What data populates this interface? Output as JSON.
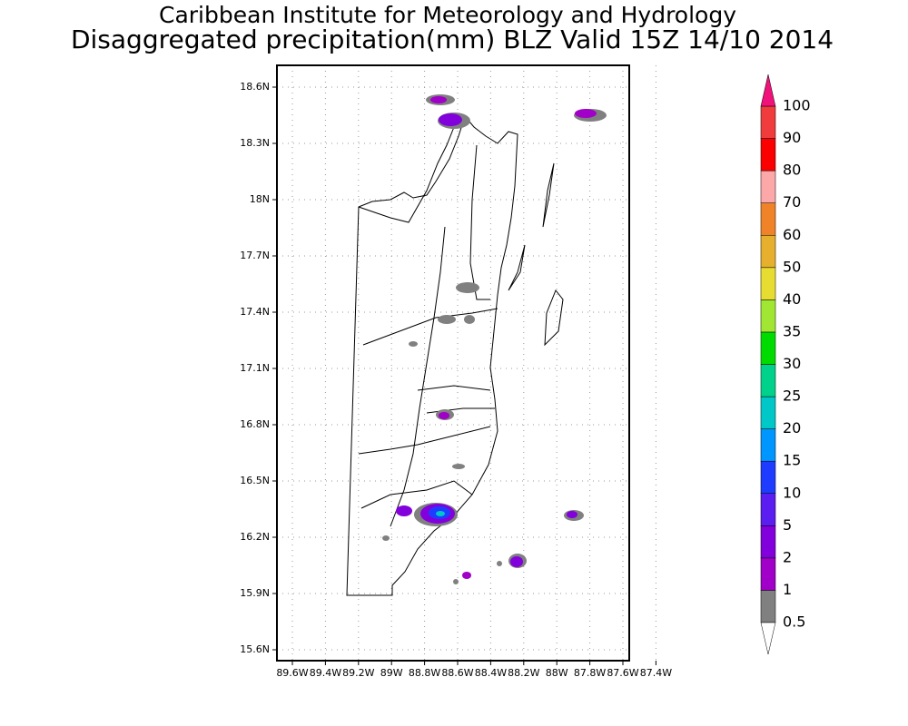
{
  "title": "Caribbean Institute for Meteorology and Hydrology",
  "subtitle": "Disaggregated precipitation(mm) BLZ Valid 15Z 14/10 2014",
  "map": {
    "lat_labels": [
      "18.6N",
      "18.3N",
      "18N",
      "17.7N",
      "17.4N",
      "17.1N",
      "16.8N",
      "16.5N",
      "16.2N",
      "15.9N",
      "15.6N"
    ],
    "lon_labels": [
      "89.6W",
      "89.4W",
      "89.2W",
      "89W",
      "88.8W",
      "88.6W",
      "88.4W",
      "88.2W",
      "88W",
      "87.8W",
      "87.6W",
      "87.4W"
    ]
  },
  "colorbar": {
    "levels": [
      0.5,
      1,
      2,
      5,
      10,
      15,
      20,
      25,
      30,
      35,
      40,
      50,
      60,
      70,
      80,
      90,
      100
    ],
    "colors": [
      "#808080",
      "#a000c8",
      "#8200dc",
      "#5a1ef0",
      "#1e3cff",
      "#0096ff",
      "#00c8c8",
      "#00d28c",
      "#00dc00",
      "#a0e632",
      "#e6dc32",
      "#e6af2d",
      "#f08228",
      "#fca8a8",
      "#fa0000",
      "#f03c3c"
    ],
    "under_color": "#ffffff",
    "over_color": "#f0117a"
  }
}
